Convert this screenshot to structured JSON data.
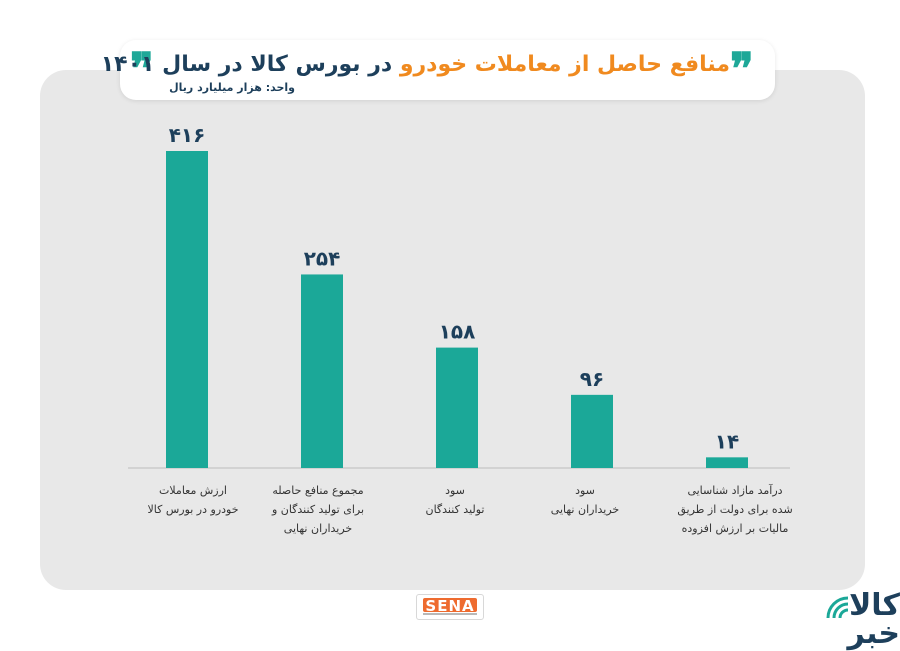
{
  "header": {
    "title_part1": "منافع حاصل از معاملات خودرو",
    "title_part2": "در بورس کالا در سال ۱۴۰۱",
    "unit": "واحد: هزار میلیارد ریال"
  },
  "colors": {
    "bar": "#1ba898",
    "accent": "#f08a1f",
    "title": "#1d3f5b",
    "panel": "#e8e8e8"
  },
  "logos": {
    "sena": "SENA",
    "kala_khabar": "کالا خبر"
  },
  "chart_data": {
    "type": "bar",
    "categories": [
      "ارزش معاملات\nخودرو در بورس کالا",
      "مجموع منافع حاصله\nبرای تولید کنندگان و\nخریداران نهایی",
      "سود\nتولید کنندگان",
      "سود\nخریداران نهایی",
      "درآمد مازاد شناسایی\nشده برای دولت از طریق\nمالیات بر ارزش افزوده"
    ],
    "values": [
      416,
      254,
      158,
      96,
      14
    ],
    "value_labels": [
      "۴۱۶",
      "۲۵۴",
      "۱۵۸",
      "۹۶",
      "۱۴"
    ],
    "title": "منافع حاصل از معاملات خودرو در بورس کالا در سال ۱۴۰۱",
    "unit": "واحد: هزار میلیارد ریال",
    "ylim": [
      0,
      416
    ],
    "grid": false,
    "legend": "none"
  }
}
